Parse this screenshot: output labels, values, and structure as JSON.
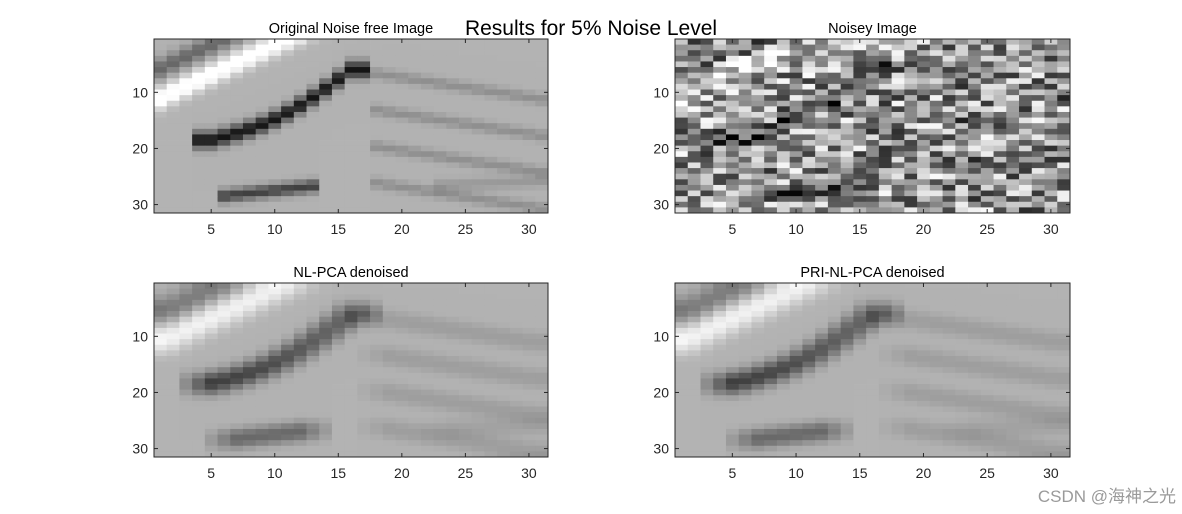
{
  "figure": {
    "suptitle": "Results for 5% Noise Level",
    "watermark": "CSDN @海神之光"
  },
  "colors": {
    "axis": "#262626",
    "colormap": "gray",
    "background": "#ffffff"
  },
  "chart_data": [
    {
      "type": "heatmap",
      "title": "Original Noise free Image",
      "colormap": "gray",
      "xlim": [
        0.5,
        31.5
      ],
      "ylim": [
        0.5,
        31.5
      ],
      "y_reversed": true,
      "xticks": [
        5,
        10,
        15,
        20,
        25,
        30
      ],
      "yticks": [
        10,
        20,
        30
      ],
      "grid": false,
      "rows": 31,
      "cols": 31,
      "noise": 0.0
    },
    {
      "type": "heatmap",
      "title": "Noisey Image",
      "colormap": "gray",
      "xlim": [
        0.5,
        31.5
      ],
      "ylim": [
        0.5,
        31.5
      ],
      "y_reversed": true,
      "xticks": [
        5,
        10,
        15,
        20,
        25,
        30
      ],
      "yticks": [
        10,
        20,
        30
      ],
      "grid": false,
      "rows": 31,
      "cols": 31,
      "noise": 0.5
    },
    {
      "type": "heatmap",
      "title": "NL-PCA denoised",
      "colormap": "gray",
      "xlim": [
        0.5,
        31.5
      ],
      "ylim": [
        0.5,
        31.5
      ],
      "y_reversed": true,
      "xticks": [
        5,
        10,
        15,
        20,
        25,
        30
      ],
      "yticks": [
        10,
        20,
        30
      ],
      "grid": false,
      "rows": 31,
      "cols": 31,
      "noise": 0.0,
      "smooth": true
    },
    {
      "type": "heatmap",
      "title": "PRI-NL-PCA denoised",
      "colormap": "gray",
      "xlim": [
        0.5,
        31.5
      ],
      "ylim": [
        0.5,
        31.5
      ],
      "y_reversed": true,
      "xticks": [
        5,
        10,
        15,
        20,
        25,
        30
      ],
      "yticks": [
        10,
        20,
        30
      ],
      "grid": false,
      "rows": 31,
      "cols": 31,
      "noise": 0.0,
      "smooth": true
    }
  ]
}
